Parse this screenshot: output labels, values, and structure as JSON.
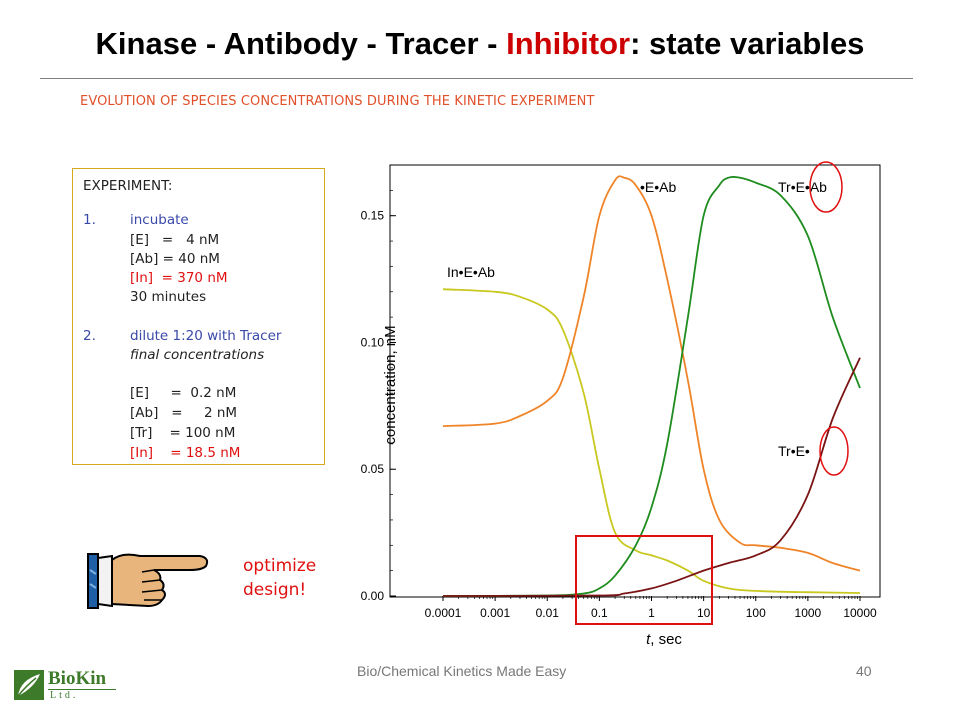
{
  "slide": {
    "title_part1": "Kinase - Antibody - Tracer - ",
    "title_highlight": "Inhibitor",
    "title_part2": ": state variables",
    "subtitle": "EVOLUTION OF SPECIES CONCENTRATIONS DURING THE KINETIC EXPERIMENT",
    "footer": "Bio/Chemical Kinetics Made Easy",
    "page_number": "40",
    "optimize_line1": "optimize",
    "optimize_line2": "design!",
    "logo_name": "BioKin",
    "logo_sub": "Ltd."
  },
  "experiment": {
    "heading": "EXPERIMENT:",
    "step1_num": "1.",
    "step1_label": "incubate",
    "step1_E": "[E]   =   4 nM",
    "step1_Ab": "[Ab] = 40 nM",
    "step1_In": "[In]  = 370 nM",
    "step1_time": "30 minutes",
    "step2_num": "2.",
    "step2_label": "dilute 1:20 with Tracer",
    "step2_sub": "final concentrations",
    "step2_E": "[E]     =  0.2 nM",
    "step2_Ab": "[Ab]   =     2 nM",
    "step2_Tr": "[Tr]    = 100 nM",
    "step2_In_label": "[In]    = ",
    "step2_In_value": "18.5 nM"
  },
  "colors": {
    "title_highlight": "#cc0000",
    "subtitle": "#e0502a",
    "InEAb": "#c8c81e",
    "EAb": "#f08428",
    "TrEAb": "#1e8c1e",
    "TrE": "#7a1414",
    "highlight": "#e01010"
  },
  "chart_data": {
    "type": "line",
    "xlabel_italic": "t",
    "xlabel_rest": ", sec",
    "ylabel": "concentration, nM",
    "x_scale": "log",
    "xlim": [
      0.0001,
      10000
    ],
    "ylim": [
      0,
      0.17
    ],
    "x_ticks": [
      "0.0001",
      "0.001",
      "0.01",
      "0.1",
      "1",
      "10",
      "100",
      "1000",
      "10000"
    ],
    "y_ticks": [
      "0.00",
      "0.05",
      "0.10",
      "0.15"
    ],
    "series": [
      {
        "name": "In•E•Ab",
        "color": "#c8c81e",
        "x": [
          0.0001,
          0.001,
          0.003,
          0.01,
          0.02,
          0.05,
          0.1,
          0.2,
          0.5,
          1,
          2,
          5,
          10,
          30,
          100,
          1000,
          10000
        ],
        "y": [
          0.121,
          0.12,
          0.118,
          0.113,
          0.105,
          0.08,
          0.05,
          0.025,
          0.018,
          0.016,
          0.014,
          0.01,
          0.006,
          0.003,
          0.002,
          0.0015,
          0.0012
        ]
      },
      {
        "name": "•E•Ab",
        "color": "#f08428",
        "x": [
          0.0001,
          0.001,
          0.003,
          0.01,
          0.02,
          0.05,
          0.1,
          0.2,
          0.3,
          0.5,
          1,
          2,
          5,
          10,
          20,
          50,
          100,
          300,
          1000,
          3000,
          10000
        ],
        "y": [
          0.067,
          0.068,
          0.071,
          0.077,
          0.086,
          0.118,
          0.15,
          0.164,
          0.165,
          0.162,
          0.15,
          0.125,
          0.085,
          0.05,
          0.03,
          0.021,
          0.02,
          0.019,
          0.017,
          0.013,
          0.01
        ]
      },
      {
        "name": "Tr•E•Ab",
        "color": "#1e8c1e",
        "x": [
          0.0001,
          0.01,
          0.05,
          0.1,
          0.2,
          0.5,
          1,
          2,
          5,
          10,
          20,
          30,
          50,
          100,
          300,
          1000,
          3000,
          10000
        ],
        "y": [
          0.0,
          0.0002,
          0.001,
          0.003,
          0.008,
          0.02,
          0.035,
          0.06,
          0.11,
          0.15,
          0.162,
          0.165,
          0.165,
          0.163,
          0.158,
          0.142,
          0.11,
          0.082
        ]
      },
      {
        "name": "Tr•E•",
        "color": "#7a1414",
        "x": [
          0.0001,
          0.1,
          0.3,
          1,
          3,
          10,
          30,
          100,
          300,
          1000,
          3000,
          10000
        ],
        "y": [
          0.0,
          0.0002,
          0.001,
          0.003,
          0.006,
          0.01,
          0.013,
          0.016,
          0.022,
          0.04,
          0.07,
          0.094
        ]
      }
    ],
    "annotations": [
      "In•E•Ab",
      "•E•Ab",
      "Tr•E•Ab",
      "Tr•E•"
    ]
  }
}
